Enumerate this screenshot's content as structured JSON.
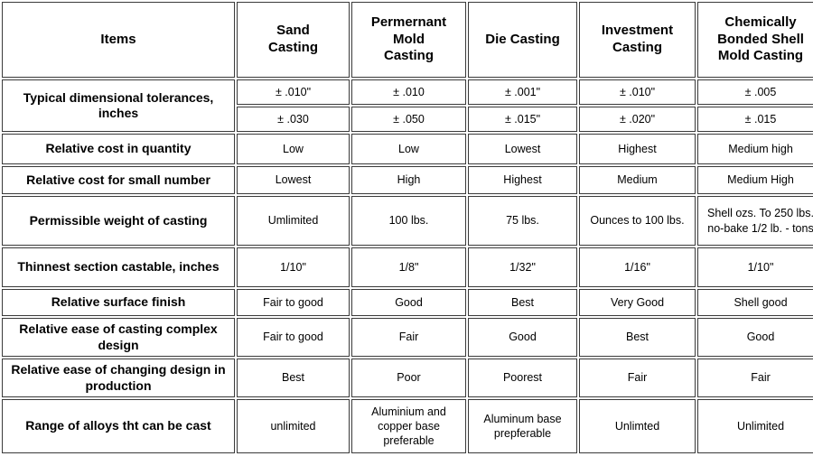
{
  "table": {
    "columns": [
      {
        "label": "Items"
      },
      {
        "label": "Sand Casting"
      },
      {
        "label": "Permernant Mold Casting"
      },
      {
        "label": "Die Casting"
      },
      {
        "label": "Investment Casting"
      },
      {
        "label": "Chemically Bonded Shell Mold Casting"
      }
    ],
    "rows": [
      {
        "label": "Typical dimensional tolerances, inches",
        "lines": [
          [
            "± .010\"",
            "± .010",
            "± .001\"",
            "± .010\"",
            "± .005"
          ],
          [
            "± .030",
            "± .050",
            "± .015\"",
            "± .020\"",
            "± .015"
          ]
        ]
      },
      {
        "label": "Relative cost in quantity",
        "values": [
          "Low",
          "Low",
          "Lowest",
          "Highest",
          "Medium high"
        ]
      },
      {
        "label": "Relative cost for small number",
        "values": [
          "Lowest",
          "High",
          "Highest",
          "Medium",
          "Medium High"
        ]
      },
      {
        "label": "Permissible weight of casting",
        "values": [
          "Umlimited",
          "100 lbs.",
          "75 lbs.",
          "Ounces to 100 lbs.",
          "Shell ozs. To 250 lbs. no-bake 1/2 lb. - tons"
        ]
      },
      {
        "label": "Thinnest section castable, inches",
        "values": [
          "1/10\"",
          "1/8\"",
          "1/32\"",
          "1/16\"",
          "1/10\""
        ]
      },
      {
        "label": "Relative surface finish",
        "values": [
          "Fair to good",
          "Good",
          "Best",
          "Very Good",
          "Shell good"
        ]
      },
      {
        "label": "Relative ease of casting complex design",
        "values": [
          "Fair to good",
          "Fair",
          "Good",
          "Best",
          "Good"
        ]
      },
      {
        "label": "Relative ease of changing design in production",
        "values": [
          "Best",
          "Poor",
          "Poorest",
          "Fair",
          "Fair"
        ]
      },
      {
        "label": "Range of alloys tht can be cast",
        "values": [
          "unlimited",
          "Aluminium and copper base preferable",
          "Aluminum base prepferable",
          "Unlimted",
          "Unlimited"
        ]
      }
    ]
  },
  "colors": {
    "header_bg": "#d9d9d9",
    "cell_bg": "#ffffff",
    "border": "#3a3a3a",
    "text": "#000000"
  }
}
